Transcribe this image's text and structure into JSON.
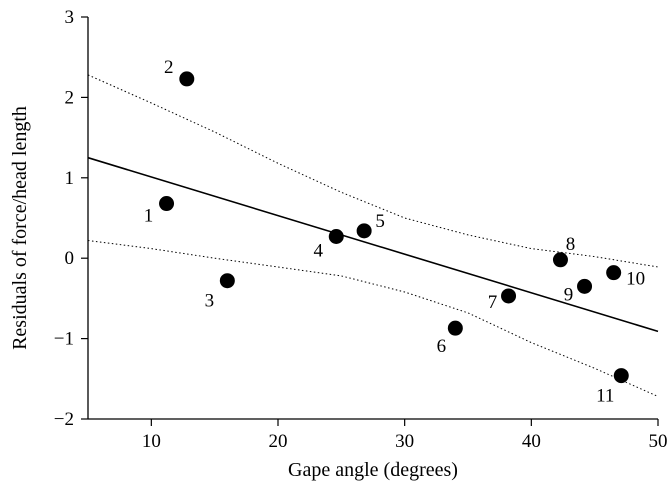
{
  "chart_data": {
    "type": "scatter",
    "title": "",
    "xlabel": "Gape angle (degrees)",
    "ylabel": "Residuals of force/head length",
    "xlim": [
      5,
      50
    ],
    "ylim": [
      -2,
      3
    ],
    "xticks": [
      10,
      20,
      30,
      40,
      50
    ],
    "yticks": [
      -2,
      -1,
      0,
      1,
      2,
      3
    ],
    "grid": false,
    "legend": "none",
    "points": [
      {
        "label": "1",
        "x": 11.2,
        "y": 0.68
      },
      {
        "label": "2",
        "x": 12.8,
        "y": 2.23
      },
      {
        "label": "3",
        "x": 16.0,
        "y": -0.28
      },
      {
        "label": "4",
        "x": 24.6,
        "y": 0.27
      },
      {
        "label": "5",
        "x": 26.8,
        "y": 0.34
      },
      {
        "label": "6",
        "x": 34.0,
        "y": -0.87
      },
      {
        "label": "7",
        "x": 38.2,
        "y": -0.47
      },
      {
        "label": "8",
        "x": 42.3,
        "y": -0.02
      },
      {
        "label": "9",
        "x": 44.2,
        "y": -0.35
      },
      {
        "label": "10",
        "x": 46.5,
        "y": -0.18
      },
      {
        "label": "11",
        "x": 47.1,
        "y": -1.46
      }
    ],
    "regression_line": {
      "x": [
        5,
        50
      ],
      "y": [
        1.25,
        -0.91
      ]
    },
    "confidence_band_upper": {
      "x": [
        5,
        10,
        15,
        20,
        25,
        30,
        35,
        40,
        45,
        50
      ],
      "y": [
        2.28,
        1.93,
        1.57,
        1.18,
        0.82,
        0.5,
        0.29,
        0.12,
        0.02,
        -0.11
      ]
    },
    "confidence_band_lower": {
      "x": [
        5,
        10,
        15,
        20,
        25,
        30,
        35,
        40,
        45,
        50
      ],
      "y": [
        0.22,
        0.12,
        0.0,
        -0.11,
        -0.22,
        -0.42,
        -0.68,
        -1.05,
        -1.37,
        -1.72
      ]
    },
    "colors": {
      "points": "#000000",
      "line": "#000000",
      "band": "#000000"
    }
  }
}
